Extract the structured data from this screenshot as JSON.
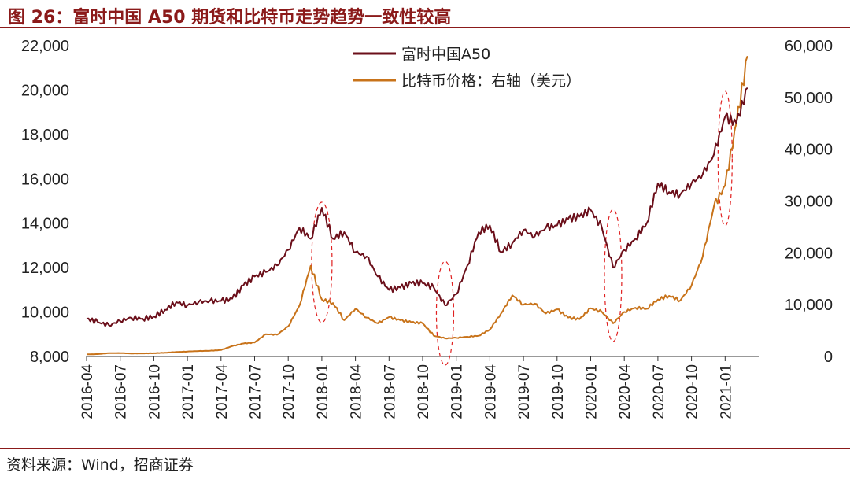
{
  "header": {
    "title": "图 26：富时中国 A50 期货和比特币走势趋势一致性较高"
  },
  "footer": {
    "source": "资料来源：Wind，招商证券"
  },
  "colors": {
    "title": "#8B1A1A",
    "a50": "#6B0F1A",
    "btc": "#C8731A",
    "highlight": "#E02020"
  },
  "chart_data": {
    "type": "line",
    "title": "",
    "xlabel": "",
    "ylabel": "",
    "y_left": {
      "min": 8000,
      "max": 22000,
      "step": 2000,
      "tick_labels": [
        "8,000",
        "10,000",
        "12,000",
        "14,000",
        "16,000",
        "18,000",
        "20,000",
        "22,000"
      ]
    },
    "y_right": {
      "min": 0,
      "max": 60000,
      "step": 10000,
      "tick_labels": [
        "0",
        "10,000",
        "20,000",
        "30,000",
        "40,000",
        "50,000",
        "60,000"
      ]
    },
    "x_range": [
      "2016-04",
      "2021-03"
    ],
    "x_tick_labels": [
      "2016-04",
      "2016-07",
      "2016-10",
      "2017-01",
      "2017-04",
      "2017-07",
      "2017-10",
      "2018-01",
      "2018-04",
      "2018-07",
      "2018-10",
      "2019-01",
      "2019-04",
      "2019-07",
      "2019-10",
      "2020-01",
      "2020-04",
      "2020-07",
      "2020-10",
      "2021-01"
    ],
    "grid": false,
    "legend": "top-center",
    "series": [
      {
        "name": "富时中国A50",
        "axis": "left",
        "x": [
          "2016-04",
          "2016-05",
          "2016-06",
          "2016-07",
          "2016-08",
          "2016-09",
          "2016-10",
          "2016-11",
          "2016-12",
          "2017-01",
          "2017-02",
          "2017-03",
          "2017-04",
          "2017-05",
          "2017-06",
          "2017-07",
          "2017-08",
          "2017-09",
          "2017-10",
          "2017-11",
          "2017-12",
          "2018-01",
          "2018-02",
          "2018-03",
          "2018-04",
          "2018-05",
          "2018-06",
          "2018-07",
          "2018-08",
          "2018-09",
          "2018-10",
          "2018-11",
          "2018-12",
          "2019-01",
          "2019-02",
          "2019-03",
          "2019-04",
          "2019-05",
          "2019-06",
          "2019-07",
          "2019-08",
          "2019-09",
          "2019-10",
          "2019-11",
          "2019-12",
          "2020-01",
          "2020-02",
          "2020-03",
          "2020-04",
          "2020-05",
          "2020-06",
          "2020-07",
          "2020-08",
          "2020-09",
          "2020-10",
          "2020-11",
          "2020-12",
          "2021-01",
          "2021-02",
          "2021-03"
        ],
        "values": [
          9700,
          9550,
          9400,
          9600,
          9750,
          9700,
          9800,
          10100,
          10450,
          10300,
          10450,
          10500,
          10500,
          10600,
          11200,
          11600,
          11800,
          12100,
          12800,
          13800,
          13300,
          14700,
          13300,
          13600,
          12700,
          12500,
          11600,
          11000,
          11100,
          11300,
          11300,
          11100,
          10300,
          10800,
          12100,
          13600,
          13900,
          12700,
          13100,
          13700,
          13400,
          13800,
          13900,
          14200,
          14300,
          14600,
          13800,
          12000,
          12800,
          13300,
          14000,
          15800,
          15400,
          15300,
          15800,
          16200,
          17100,
          18800,
          18500,
          20100
        ]
      },
      {
        "name": "比特币价格：右轴（美元）",
        "axis": "right",
        "x": [
          "2016-04",
          "2016-05",
          "2016-06",
          "2016-07",
          "2016-08",
          "2016-09",
          "2016-10",
          "2016-11",
          "2016-12",
          "2017-01",
          "2017-02",
          "2017-03",
          "2017-04",
          "2017-05",
          "2017-06",
          "2017-07",
          "2017-08",
          "2017-09",
          "2017-10",
          "2017-11",
          "2017-12",
          "2018-01",
          "2018-02",
          "2018-03",
          "2018-04",
          "2018-05",
          "2018-06",
          "2018-07",
          "2018-08",
          "2018-09",
          "2018-10",
          "2018-11",
          "2018-12",
          "2019-01",
          "2019-02",
          "2019-03",
          "2019-04",
          "2019-05",
          "2019-06",
          "2019-07",
          "2019-08",
          "2019-09",
          "2019-10",
          "2019-11",
          "2019-12",
          "2020-01",
          "2020-02",
          "2020-03",
          "2020-04",
          "2020-05",
          "2020-06",
          "2020-07",
          "2020-08",
          "2020-09",
          "2020-10",
          "2020-11",
          "2020-12",
          "2021-01",
          "2021-02",
          "2021-03"
        ],
        "values": [
          420,
          450,
          650,
          660,
          580,
          600,
          630,
          720,
          860,
          960,
          1050,
          1100,
          1250,
          2000,
          2500,
          2700,
          4300,
          4200,
          5800,
          9800,
          17500,
          11000,
          10300,
          7000,
          9200,
          7500,
          6400,
          7600,
          7000,
          6600,
          6400,
          4000,
          3500,
          3600,
          3800,
          4000,
          5200,
          8300,
          11800,
          10000,
          10200,
          8300,
          9100,
          7500,
          7200,
          9300,
          8600,
          6400,
          8600,
          9400,
          9200,
          11000,
          11700,
          10800,
          13700,
          19300,
          29000,
          33000,
          45000,
          58000
        ]
      }
    ]
  }
}
